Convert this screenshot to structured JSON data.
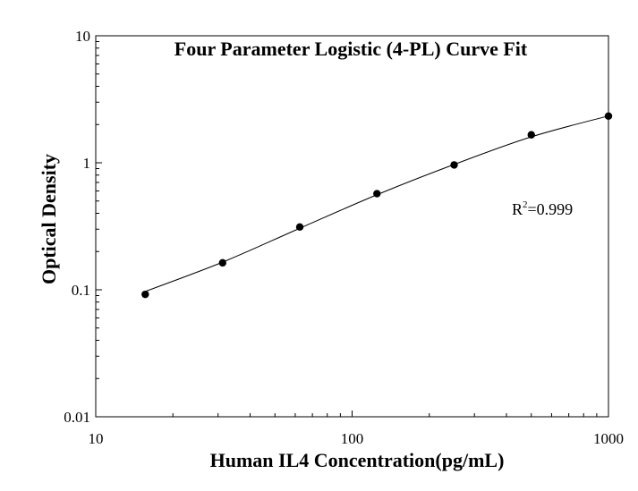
{
  "chart_data": {
    "type": "scatter",
    "title": "Four Parameter Logistic (4-PL) Curve Fit",
    "xlabel": "Human IL4 Concentration(pg/mL)",
    "ylabel": "Optical Density",
    "xscale": "log",
    "yscale": "log",
    "xlim": [
      10,
      1000
    ],
    "ylim": [
      0.01,
      10
    ],
    "x_ticks": [
      "10",
      "100",
      "1000"
    ],
    "y_ticks": [
      "0.01",
      "0.1",
      "1",
      "10"
    ],
    "grid": false,
    "series": [
      {
        "x": [
          15.6,
          31.25,
          62.5,
          125,
          250,
          500,
          1000
        ],
        "y": [
          0.092,
          0.163,
          0.312,
          0.571,
          0.962,
          1.66,
          2.33
        ]
      }
    ],
    "fit": {
      "model": "4PL",
      "x": [
        15.6,
        31.25,
        62.5,
        125,
        250,
        500,
        1000
      ],
      "y": [
        0.097,
        0.165,
        0.305,
        0.56,
        0.97,
        1.6,
        2.34
      ]
    },
    "annotation": {
      "text": "R",
      "superscript": "2",
      "value": "=0.999"
    }
  }
}
